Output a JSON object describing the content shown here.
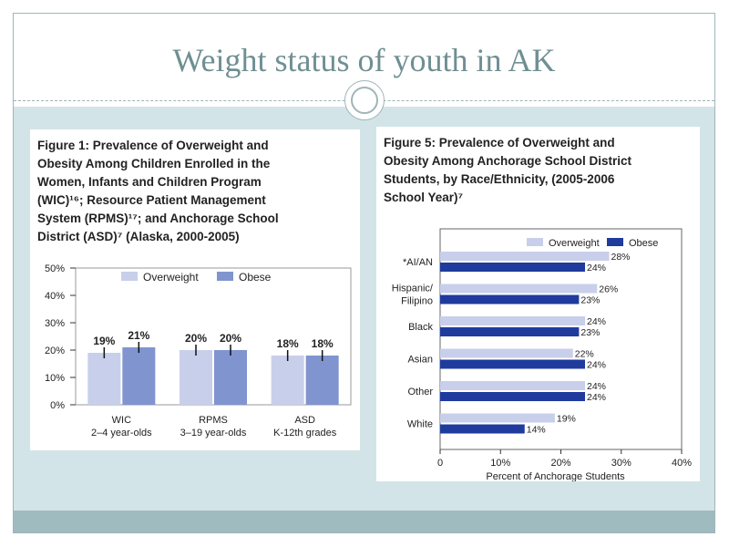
{
  "slide": {
    "title": "Weight status of youth in AK"
  },
  "colors": {
    "overweight": "#c8cfea",
    "obese_fig1": "#8094cf",
    "obese_fig5": "#1f3b9e",
    "content_bg": "#d3e4e8",
    "title_text": "#6f8f93"
  },
  "figure1": {
    "caption_lines": [
      "Figure 1: Prevalence of Overweight and",
      "Obesity Among Children Enrolled in the",
      "Women, Infants and Children Program",
      "(WIC)¹⁶;  Resource Patient Management",
      "System (RPMS)¹⁷; and Anchorage School",
      "District (ASD)⁷ (Alaska, 2000-2005)"
    ]
  },
  "figure5": {
    "caption_lines": [
      "Figure 5:  Prevalence of Overweight and",
      "Obesity Among Anchorage School District",
      "Students, by Race/Ethnicity, (2005-2006",
      "School Year)⁷"
    ]
  },
  "chart_data": [
    {
      "type": "bar",
      "orientation": "vertical",
      "categories": [
        {
          "line1": "WIC",
          "line2": "2–4 year-olds"
        },
        {
          "line1": "RPMS",
          "line2": "3–19 year-olds"
        },
        {
          "line1": "ASD",
          "line2": "K-12th grades"
        }
      ],
      "series": [
        {
          "name": "Overweight",
          "values": [
            19,
            20,
            18
          ],
          "labels": [
            "19%",
            "20%",
            "18%"
          ]
        },
        {
          "name": "Obese",
          "values": [
            21,
            20,
            18
          ],
          "labels": [
            "21%",
            "20%",
            "18%"
          ]
        }
      ],
      "error_bars": true,
      "ylim": [
        0,
        50
      ],
      "yticks": [
        {
          "value": 0,
          "label": "0%"
        },
        {
          "value": 10,
          "label": "10%"
        },
        {
          "value": 20,
          "label": "20%"
        },
        {
          "value": 30,
          "label": "30%"
        },
        {
          "value": 40,
          "label": "40%"
        },
        {
          "value": 50,
          "label": "50%"
        }
      ],
      "legend_placement": "top-center"
    },
    {
      "type": "bar",
      "orientation": "horizontal",
      "categories": [
        {
          "line1": "*AI/AN",
          "line2": ""
        },
        {
          "line1": "Hispanic/",
          "line2": "Filipino"
        },
        {
          "line1": "Black",
          "line2": ""
        },
        {
          "line1": "Asian",
          "line2": ""
        },
        {
          "line1": "Other",
          "line2": ""
        },
        {
          "line1": "White",
          "line2": ""
        }
      ],
      "series": [
        {
          "name": "Overweight",
          "values": [
            28,
            26,
            24,
            22,
            24,
            19
          ],
          "labels": [
            "28%",
            "26%",
            "24%",
            "22%",
            "24%",
            "19%"
          ]
        },
        {
          "name": "Obese",
          "values": [
            24,
            23,
            23,
            24,
            24,
            14
          ],
          "labels": [
            "24%",
            "23%",
            "23%",
            "24%",
            "24%",
            "14%"
          ]
        }
      ],
      "xlim": [
        0,
        40
      ],
      "xticks": [
        {
          "value": 0,
          "label": "0"
        },
        {
          "value": 10,
          "label": "10%"
        },
        {
          "value": 20,
          "label": "20%"
        },
        {
          "value": 30,
          "label": "30%"
        },
        {
          "value": 40,
          "label": "40%"
        }
      ],
      "xlabel": "Percent of Anchorage Students",
      "legend_placement": "top-right"
    }
  ]
}
